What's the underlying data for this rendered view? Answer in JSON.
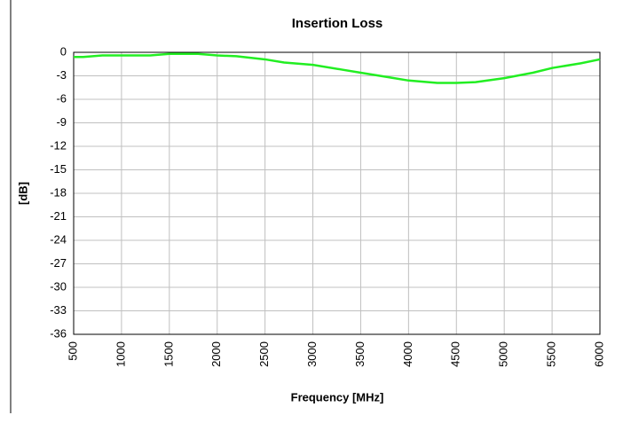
{
  "chart_data": {
    "type": "line",
    "title": "Insertion Loss",
    "x_label": "Frequency [MHz]",
    "y_label": "[dB]",
    "x": [
      500,
      600,
      800,
      1000,
      1300,
      1500,
      1800,
      2000,
      2200,
      2500,
      2700,
      3000,
      3300,
      3500,
      3800,
      4000,
      4300,
      4500,
      4700,
      5000,
      5300,
      5500,
      5800,
      6000
    ],
    "series": [
      {
        "name": "Insertion Loss",
        "color": "#22ee22",
        "values": [
          -0.6,
          -0.6,
          -0.4,
          -0.4,
          -0.4,
          -0.2,
          -0.2,
          -0.4,
          -0.5,
          -0.9,
          -1.3,
          -1.6,
          -2.2,
          -2.6,
          -3.2,
          -3.6,
          -3.9,
          -3.9,
          -3.8,
          -3.3,
          -2.6,
          -2.0,
          -1.4,
          -0.9
        ]
      }
    ],
    "xlim": [
      500,
      6000
    ],
    "xticks": [
      500,
      1000,
      1500,
      2000,
      2500,
      3000,
      3500,
      4000,
      4500,
      5000,
      5500,
      6000
    ],
    "ylim": [
      -36,
      0
    ],
    "yticks": [
      0,
      -3,
      -6,
      -9,
      -12,
      -15,
      -18,
      -21,
      -24,
      -27,
      -30,
      -33,
      -36
    ],
    "grid": true
  }
}
